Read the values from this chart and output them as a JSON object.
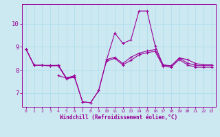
{
  "xlabel": "Windchill (Refroidissement éolien,°C)",
  "bg_color": "#cce8f0",
  "line_color": "#990099",
  "grid_color": "#aaddee",
  "xlim": [
    -0.5,
    23.5
  ],
  "ylim": [
    6.4,
    10.85
  ],
  "yticks": [
    7,
    8,
    9,
    10
  ],
  "x": [
    0,
    1,
    2,
    3,
    4,
    5,
    6,
    7,
    8,
    9,
    10,
    11,
    12,
    13,
    14,
    15,
    16,
    17,
    18,
    19,
    20,
    21,
    22,
    23
  ],
  "s1": [
    8.9,
    8.2,
    8.2,
    8.2,
    8.2,
    7.65,
    7.7,
    6.62,
    6.58,
    7.1,
    8.45,
    9.6,
    9.15,
    9.3,
    10.55,
    10.55,
    9.05,
    8.2,
    8.18,
    8.52,
    8.3,
    8.2,
    8.2,
    8.2
  ],
  "s2": [
    8.9,
    8.2,
    8.2,
    8.18,
    8.2,
    7.65,
    7.72,
    6.62,
    6.58,
    7.1,
    8.45,
    8.55,
    8.28,
    8.55,
    8.72,
    8.82,
    8.88,
    8.22,
    8.18,
    8.52,
    8.45,
    8.28,
    8.22,
    8.22
  ],
  "s3": [
    null,
    null,
    null,
    null,
    7.75,
    7.65,
    7.75,
    null,
    null,
    null,
    null,
    null,
    null,
    null,
    null,
    null,
    null,
    null,
    null,
    null,
    null,
    null,
    null,
    null
  ],
  "s4": [
    8.9,
    8.2,
    8.2,
    8.18,
    8.18,
    7.62,
    7.68,
    null,
    null,
    null,
    8.38,
    8.5,
    8.22,
    8.42,
    8.65,
    8.75,
    8.8,
    8.15,
    8.12,
    8.45,
    8.22,
    8.12,
    8.12,
    8.12
  ]
}
